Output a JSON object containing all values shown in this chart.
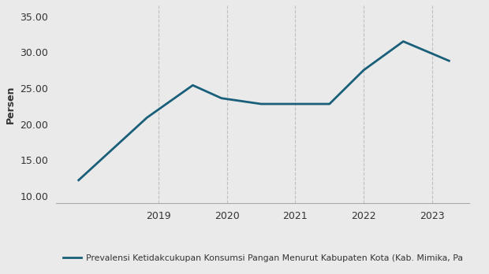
{
  "x": [
    2017.83,
    2018.83,
    2019.5,
    2019.92,
    2020.5,
    2021.5,
    2022.0,
    2022.58,
    2023.25
  ],
  "y": [
    12.2,
    20.9,
    25.4,
    23.6,
    22.8,
    22.8,
    27.5,
    31.5,
    28.8
  ],
  "line_color": "#1a5f7a",
  "line_width": 2.0,
  "ylabel": "Persen",
  "ylim": [
    9.0,
    36.5
  ],
  "yticks": [
    10.0,
    15.0,
    20.0,
    25.0,
    30.0,
    35.0
  ],
  "xlim": [
    2017.5,
    2023.55
  ],
  "xticks": [
    2019,
    2020,
    2021,
    2022,
    2023
  ],
  "xtick_labels": [
    "2019",
    "2020",
    "2021",
    "2022",
    "2023"
  ],
  "legend_label": "Prevalensi Ketidakcukupan Konsumsi Pangan Menurut Kabupaten Kota (Kab. Mimika, Pa",
  "background_color": "#eaeaea",
  "grid_color": "#c0c0c0",
  "tick_color": "#333333",
  "ylabel_fontsize": 9,
  "tick_fontsize": 9,
  "legend_fontsize": 7.8
}
